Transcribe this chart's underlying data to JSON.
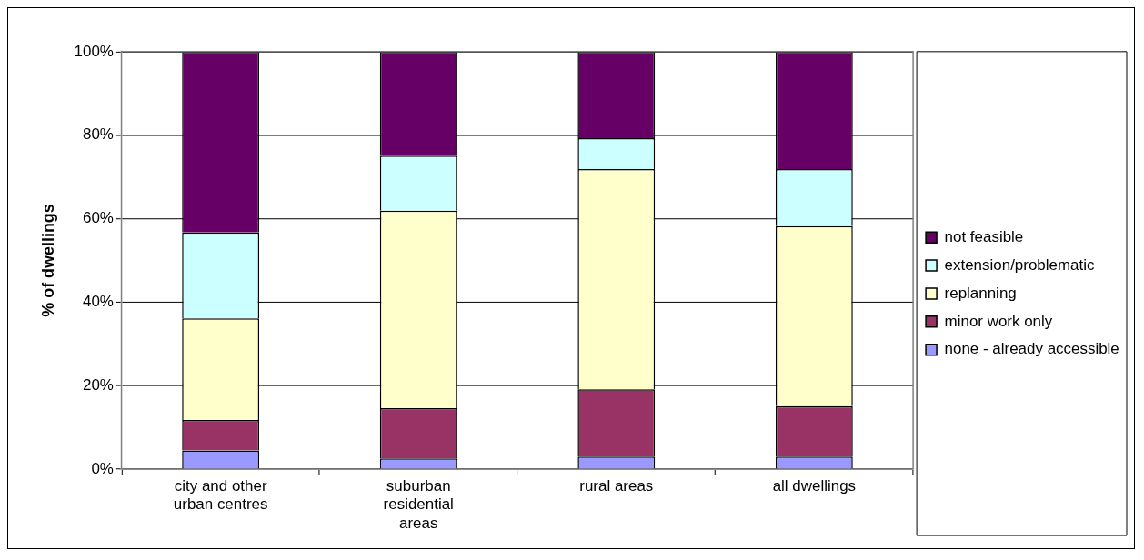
{
  "chart_data": {
    "type": "bar",
    "ylabel": "% of dwellings",
    "categories": [
      "city and other urban centres",
      "suburban residential areas",
      "rural areas",
      "all dwellings"
    ],
    "stacked": true,
    "ylim": [
      0,
      100
    ],
    "yticks": [
      {
        "value": 0,
        "label": "0%"
      },
      {
        "value": 20,
        "label": "20%"
      },
      {
        "value": 40,
        "label": "40%"
      },
      {
        "value": 60,
        "label": "60%"
      },
      {
        "value": 80,
        "label": "80%"
      },
      {
        "value": 100,
        "label": "100%"
      }
    ],
    "grid": "y",
    "legend": "right",
    "series": [
      {
        "name": "none - already accessible",
        "color": "#9999ff",
        "values": [
          4.5,
          2.6,
          3.0,
          3.0
        ]
      },
      {
        "name": "minor work only",
        "color": "#993366",
        "values": [
          7.3,
          12.0,
          16.1,
          12.1
        ]
      },
      {
        "name": "replanning",
        "color": "#ffffcc",
        "values": [
          24.3,
          47.3,
          52.8,
          43.1
        ]
      },
      {
        "name": "extension/problematic",
        "color": "#ccffff",
        "values": [
          20.6,
          13.2,
          7.4,
          13.7
        ]
      },
      {
        "name": "not feasible",
        "color": "#660066",
        "values": [
          43.3,
          24.9,
          20.7,
          28.1
        ]
      }
    ]
  }
}
